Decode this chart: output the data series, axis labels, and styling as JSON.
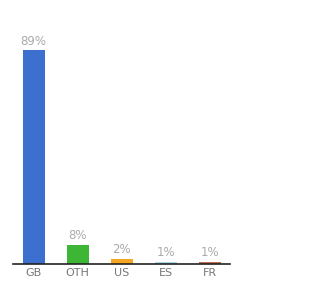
{
  "categories": [
    "GB",
    "OTH",
    "US",
    "ES",
    "FR"
  ],
  "values": [
    89,
    8,
    2,
    1,
    1
  ],
  "labels": [
    "89%",
    "8%",
    "2%",
    "1%",
    "1%"
  ],
  "bar_colors": [
    "#3d6fce",
    "#3db535",
    "#f5a623",
    "#a8d8ea",
    "#c07050"
  ],
  "ylim": [
    0,
    100
  ],
  "background_color": "#ffffff",
  "label_color": "#aaaaaa",
  "label_fontsize": 8.5,
  "tick_fontsize": 8,
  "bar_width": 0.5
}
